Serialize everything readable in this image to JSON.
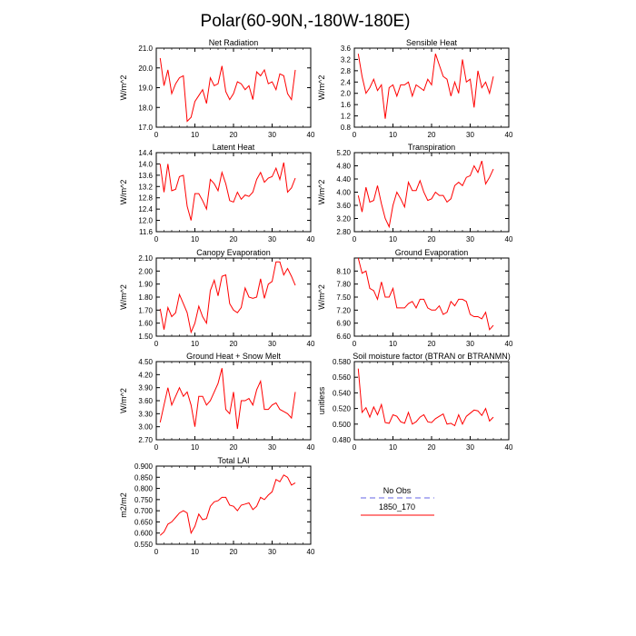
{
  "figure_title": "Polar(60-90N,-180W-180E)",
  "legend": {
    "entries": [
      {
        "label": "No Obs",
        "color": "#9999ee",
        "style": "dashed"
      },
      {
        "label": "1850_170",
        "color": "#ff0000",
        "style": "solid"
      }
    ]
  },
  "chart_data": [
    {
      "type": "line",
      "title": "Net Radiation",
      "xlabel": "",
      "ylabel": "W/m^2",
      "xlim": [
        0,
        40
      ],
      "ylim": [
        17.0,
        21.0
      ],
      "xticks": [
        "0",
        "10",
        "20",
        "30",
        "40"
      ],
      "yticks": [
        "17.0",
        "18.0",
        "19.0",
        "20.0",
        "21.0"
      ],
      "series": [
        {
          "name": "1850_170",
          "x": [
            1,
            2,
            3,
            4,
            5,
            6,
            7,
            8,
            9,
            10,
            11,
            12,
            13,
            14,
            15,
            16,
            17,
            18,
            19,
            20,
            21,
            22,
            23,
            24,
            25,
            26,
            27,
            28,
            29,
            30,
            31,
            32,
            33,
            34,
            35,
            36
          ],
          "values": [
            20.5,
            19.1,
            19.9,
            18.7,
            19.2,
            19.5,
            19.6,
            17.3,
            17.5,
            18.3,
            18.6,
            18.9,
            18.2,
            19.5,
            19.1,
            19.2,
            20.1,
            18.8,
            18.4,
            18.7,
            19.3,
            19.2,
            18.9,
            19.1,
            18.4,
            19.8,
            19.6,
            19.9,
            19.2,
            19.3,
            18.9,
            19.7,
            19.6,
            18.7,
            18.4,
            19.9
          ]
        }
      ]
    },
    {
      "type": "line",
      "title": "Sensible Heat",
      "xlabel": "",
      "ylabel": "W/m^2",
      "xlim": [
        0,
        40
      ],
      "ylim": [
        0.8,
        3.6
      ],
      "xticks": [
        "0",
        "10",
        "20",
        "30",
        "40"
      ],
      "yticks": [
        "0.8",
        "1.2",
        "1.6",
        "2.0",
        "2.4",
        "2.8",
        "3.2",
        "3.6"
      ],
      "series": [
        {
          "name": "1850_170",
          "x": [
            1,
            2,
            3,
            4,
            5,
            6,
            7,
            8,
            9,
            10,
            11,
            12,
            13,
            14,
            15,
            16,
            17,
            18,
            19,
            20,
            21,
            22,
            23,
            24,
            25,
            26,
            27,
            28,
            29,
            30,
            31,
            32,
            33,
            34,
            35,
            36
          ],
          "values": [
            3.4,
            2.6,
            2.0,
            2.2,
            2.5,
            2.1,
            2.3,
            1.1,
            2.2,
            2.3,
            1.9,
            2.3,
            2.3,
            2.4,
            1.9,
            2.3,
            2.2,
            2.1,
            2.5,
            2.3,
            3.4,
            3.0,
            2.6,
            2.5,
            1.9,
            2.4,
            2.0,
            3.2,
            2.4,
            2.5,
            1.5,
            2.8,
            2.2,
            2.4,
            2.0,
            2.6
          ]
        }
      ]
    },
    {
      "type": "line",
      "title": "Latent Heat",
      "xlabel": "",
      "ylabel": "W/m^2",
      "xlim": [
        0,
        40
      ],
      "ylim": [
        11.6,
        14.4
      ],
      "xticks": [
        "0",
        "10",
        "20",
        "30",
        "40"
      ],
      "yticks": [
        "11.6",
        "12.0",
        "12.4",
        "12.8",
        "13.2",
        "13.6",
        "14.0",
        "14.4"
      ],
      "series": [
        {
          "name": "1850_170",
          "x": [
            1,
            2,
            3,
            4,
            5,
            6,
            7,
            8,
            9,
            10,
            11,
            12,
            13,
            14,
            15,
            16,
            17,
            18,
            19,
            20,
            21,
            22,
            23,
            24,
            25,
            26,
            27,
            28,
            29,
            30,
            31,
            32,
            33,
            34,
            35,
            36
          ],
          "values": [
            14.0,
            13.0,
            14.0,
            13.05,
            13.1,
            13.55,
            13.6,
            12.5,
            12.0,
            12.95,
            12.95,
            12.7,
            12.4,
            13.45,
            13.3,
            13.05,
            13.7,
            13.3,
            12.7,
            12.65,
            13.0,
            12.75,
            12.9,
            12.85,
            13.0,
            13.45,
            13.7,
            13.35,
            13.5,
            13.55,
            13.85,
            13.45,
            14.05,
            13.0,
            13.15,
            13.5
          ]
        }
      ]
    },
    {
      "type": "line",
      "title": "Transpiration",
      "xlabel": "",
      "ylabel": "W/m^2",
      "xlim": [
        0,
        40
      ],
      "ylim": [
        2.8,
        5.2
      ],
      "xticks": [
        "0",
        "10",
        "20",
        "30",
        "40"
      ],
      "yticks": [
        "2.80",
        "3.20",
        "3.60",
        "4.00",
        "4.40",
        "4.80",
        "5.20"
      ],
      "series": [
        {
          "name": "1850_170",
          "x": [
            1,
            2,
            3,
            4,
            5,
            6,
            7,
            8,
            9,
            10,
            11,
            12,
            13,
            14,
            15,
            16,
            17,
            18,
            19,
            20,
            21,
            22,
            23,
            24,
            25,
            26,
            27,
            28,
            29,
            30,
            31,
            32,
            33,
            34,
            35,
            36
          ],
          "values": [
            3.9,
            3.4,
            4.15,
            3.7,
            3.75,
            4.2,
            3.65,
            3.2,
            2.95,
            3.6,
            4.0,
            3.8,
            3.55,
            4.3,
            4.05,
            4.05,
            4.35,
            4.0,
            3.75,
            3.8,
            4.0,
            3.9,
            3.9,
            3.7,
            3.8,
            4.2,
            4.3,
            4.2,
            4.45,
            4.5,
            4.8,
            4.6,
            4.95,
            4.25,
            4.45,
            4.7
          ]
        }
      ]
    },
    {
      "type": "line",
      "title": "Canopy Evaporation",
      "xlabel": "",
      "ylabel": "W/m^2",
      "xlim": [
        0,
        40
      ],
      "ylim": [
        1.5,
        2.1
      ],
      "xticks": [
        "0",
        "10",
        "20",
        "30",
        "40"
      ],
      "yticks": [
        "1.50",
        "1.60",
        "1.70",
        "1.80",
        "1.90",
        "2.00",
        "2.10"
      ],
      "series": [
        {
          "name": "1850_170",
          "x": [
            1,
            2,
            3,
            4,
            5,
            6,
            7,
            8,
            9,
            10,
            11,
            12,
            13,
            14,
            15,
            16,
            17,
            18,
            19,
            20,
            21,
            22,
            23,
            24,
            25,
            26,
            27,
            28,
            29,
            30,
            31,
            32,
            33,
            34,
            35,
            36
          ],
          "values": [
            1.71,
            1.55,
            1.72,
            1.65,
            1.68,
            1.82,
            1.75,
            1.68,
            1.53,
            1.6,
            1.73,
            1.65,
            1.6,
            1.85,
            1.93,
            1.81,
            1.96,
            1.97,
            1.75,
            1.7,
            1.68,
            1.72,
            1.87,
            1.8,
            1.79,
            1.8,
            1.94,
            1.79,
            1.9,
            1.92,
            2.07,
            2.07,
            1.97,
            2.02,
            1.96,
            1.89
          ]
        }
      ]
    },
    {
      "type": "line",
      "title": "Ground Evaporation",
      "xlabel": "",
      "ylabel": "W/m^2",
      "xlim": [
        0,
        40
      ],
      "ylim": [
        6.6,
        8.4
      ],
      "xticks": [
        "0",
        "10",
        "20",
        "30",
        "40"
      ],
      "yticks": [
        "6.60",
        "6.90",
        "7.20",
        "7.50",
        "7.80",
        "8.10"
      ],
      "series": [
        {
          "name": "1850_170",
          "x": [
            1,
            2,
            3,
            4,
            5,
            6,
            7,
            8,
            9,
            10,
            11,
            12,
            13,
            14,
            15,
            16,
            17,
            18,
            19,
            20,
            21,
            22,
            23,
            24,
            25,
            26,
            27,
            28,
            29,
            30,
            31,
            32,
            33,
            34,
            35,
            36
          ],
          "values": [
            8.4,
            8.05,
            8.1,
            7.7,
            7.65,
            7.45,
            7.85,
            7.5,
            7.5,
            7.7,
            7.25,
            7.25,
            7.25,
            7.35,
            7.4,
            7.25,
            7.45,
            7.45,
            7.25,
            7.2,
            7.2,
            7.3,
            7.1,
            7.15,
            7.4,
            7.3,
            7.45,
            7.45,
            7.4,
            7.1,
            7.05,
            7.05,
            7.0,
            7.15,
            6.75,
            6.85
          ]
        }
      ]
    },
    {
      "type": "line",
      "title": "Ground Heat + Snow Melt",
      "xlabel": "",
      "ylabel": "W/m^2",
      "xlim": [
        0,
        40
      ],
      "ylim": [
        2.7,
        4.5
      ],
      "xticks": [
        "0",
        "10",
        "20",
        "30",
        "40"
      ],
      "yticks": [
        "2.70",
        "3.00",
        "3.30",
        "3.60",
        "3.90",
        "4.20",
        "4.50"
      ],
      "series": [
        {
          "name": "1850_170",
          "x": [
            1,
            2,
            3,
            4,
            5,
            6,
            7,
            8,
            9,
            10,
            11,
            12,
            13,
            14,
            15,
            16,
            17,
            18,
            19,
            20,
            21,
            22,
            23,
            24,
            25,
            26,
            27,
            28,
            29,
            30,
            31,
            32,
            33,
            34,
            35,
            36
          ],
          "values": [
            3.1,
            3.5,
            3.9,
            3.5,
            3.7,
            3.9,
            3.7,
            3.8,
            3.5,
            3.0,
            3.7,
            3.7,
            3.5,
            3.6,
            3.8,
            4.0,
            4.35,
            3.4,
            3.3,
            3.8,
            2.95,
            3.6,
            3.6,
            3.65,
            3.5,
            3.85,
            4.05,
            3.4,
            3.4,
            3.5,
            3.55,
            3.4,
            3.35,
            3.3,
            3.2,
            3.8
          ]
        }
      ]
    },
    {
      "type": "line",
      "title": "Soil moisture factor (BTRAN or BTRANMN)",
      "xlabel": "",
      "ylabel": "unitless",
      "xlim": [
        0,
        40
      ],
      "ylim": [
        0.48,
        0.58
      ],
      "xticks": [
        "0",
        "10",
        "20",
        "30",
        "40"
      ],
      "yticks": [
        "0.480",
        "0.500",
        "0.520",
        "0.540",
        "0.560",
        "0.580"
      ],
      "series": [
        {
          "name": "1850_170",
          "x": [
            1,
            2,
            3,
            4,
            5,
            6,
            7,
            8,
            9,
            10,
            11,
            12,
            13,
            14,
            15,
            16,
            17,
            18,
            19,
            20,
            21,
            22,
            23,
            24,
            25,
            26,
            27,
            28,
            29,
            30,
            31,
            32,
            33,
            34,
            35,
            36
          ],
          "values": [
            0.571,
            0.515,
            0.521,
            0.509,
            0.522,
            0.512,
            0.525,
            0.502,
            0.501,
            0.512,
            0.51,
            0.503,
            0.501,
            0.515,
            0.5,
            0.503,
            0.509,
            0.512,
            0.503,
            0.502,
            0.507,
            0.51,
            0.513,
            0.5,
            0.501,
            0.498,
            0.512,
            0.5,
            0.51,
            0.514,
            0.518,
            0.517,
            0.511,
            0.52,
            0.504,
            0.509
          ]
        }
      ]
    },
    {
      "type": "line",
      "title": "Total LAI",
      "xlabel": "",
      "ylabel": "m2/m2",
      "xlim": [
        0,
        40
      ],
      "ylim": [
        0.55,
        0.9
      ],
      "xticks": [
        "0",
        "10",
        "20",
        "30",
        "40"
      ],
      "yticks": [
        "0.550",
        "0.600",
        "0.650",
        "0.700",
        "0.750",
        "0.800",
        "0.850",
        "0.900"
      ],
      "series": [
        {
          "name": "1850_170",
          "x": [
            1,
            2,
            3,
            4,
            5,
            6,
            7,
            8,
            9,
            10,
            11,
            12,
            13,
            14,
            15,
            16,
            17,
            18,
            19,
            20,
            21,
            22,
            23,
            24,
            25,
            26,
            27,
            28,
            29,
            30,
            31,
            32,
            33,
            34,
            35,
            36
          ],
          "values": [
            0.59,
            0.605,
            0.64,
            0.65,
            0.67,
            0.69,
            0.7,
            0.69,
            0.6,
            0.63,
            0.685,
            0.66,
            0.665,
            0.72,
            0.74,
            0.745,
            0.76,
            0.76,
            0.725,
            0.72,
            0.7,
            0.725,
            0.73,
            0.735,
            0.705,
            0.72,
            0.76,
            0.75,
            0.77,
            0.785,
            0.84,
            0.83,
            0.86,
            0.85,
            0.815,
            0.825
          ]
        }
      ]
    }
  ]
}
